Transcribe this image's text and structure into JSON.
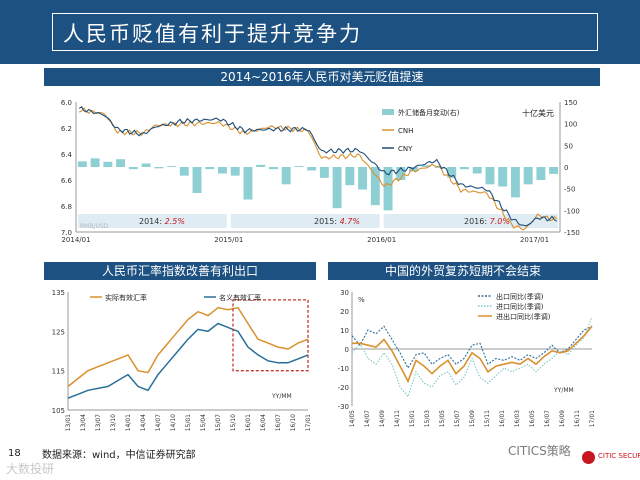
{
  "page": {
    "title": "人民币贬值有利于提升竞争力",
    "page_number": "18",
    "source": "数据来源：wind，中信证券研究部",
    "watermark_left": "大数投研",
    "watermark_right": "CITICS策略",
    "logo_text": "CITIC SECURITIES"
  },
  "colors": {
    "banner": "#1c5182",
    "orange": "#d9902f",
    "blue": "#2a6f97",
    "teal_bar": "#8ecfd3",
    "red": "#c8161e",
    "darkred": "#c0392b"
  },
  "chart_data": [
    {
      "id": "top",
      "type": "bar+line",
      "title": "2014~2016年人民币对美元贬值提速",
      "unit_left": "RMB/USD",
      "unit_right": "十亿美元",
      "y_left": [
        6.0,
        7.0
      ],
      "y_left_ticks": [
        "6.0",
        "6.2",
        "6.4",
        "6.6",
        "6.8",
        "7.0"
      ],
      "y_right": [
        -150,
        150
      ],
      "y_right_ticks": [
        "150",
        "100",
        "50",
        "0",
        "-50",
        "-100",
        "-150"
      ],
      "x_ticks": [
        "2014/01",
        "2015/01",
        "2016/01",
        "2017/01"
      ],
      "legend": [
        "外汇储备月变动(右)",
        "CNH",
        "CNY"
      ],
      "annotations": [
        {
          "prefix": "2014: ",
          "value": "2.5%"
        },
        {
          "prefix": "2015: ",
          "value": "4.7%"
        },
        {
          "prefix": "2016: ",
          "value": "7.0%"
        }
      ],
      "reserve_change": [
        13,
        20,
        12,
        18,
        -5,
        8,
        -3,
        2,
        -20,
        -60,
        -5,
        -15,
        -20,
        -75,
        5,
        -5,
        -40,
        2,
        -8,
        -25,
        -95,
        -42,
        -52,
        -88,
        -100,
        -30,
        -10,
        4,
        -2,
        -25,
        -5,
        -15,
        -40,
        -45,
        -70,
        -40,
        -30,
        -16
      ],
      "cny_anchor_months": [
        0,
        2,
        3,
        5,
        6,
        8,
        11,
        13,
        15,
        18,
        19,
        22,
        24,
        26,
        28,
        30,
        32,
        34,
        35,
        36,
        37
      ],
      "cny_anchor_values": [
        6.05,
        6.1,
        6.21,
        6.25,
        6.19,
        6.15,
        6.13,
        6.22,
        6.21,
        6.21,
        6.38,
        6.37,
        6.55,
        6.51,
        6.45,
        6.64,
        6.67,
        6.9,
        6.96,
        6.89,
        6.9
      ],
      "cnh_anchor_months": [
        0,
        2,
        3,
        5,
        6,
        8,
        11,
        13,
        15,
        18,
        19,
        22,
        24,
        26,
        28,
        30,
        32,
        34,
        35,
        36,
        37
      ],
      "cnh_anchor_values": [
        6.06,
        6.09,
        6.23,
        6.24,
        6.18,
        6.17,
        6.16,
        6.24,
        6.19,
        6.22,
        6.43,
        6.41,
        6.65,
        6.54,
        6.48,
        6.68,
        6.7,
        6.95,
        6.98,
        6.87,
        6.9
      ]
    },
    {
      "id": "bottom-left",
      "type": "line",
      "title": "人民币汇率指数改善有利出口",
      "y_range": [
        105,
        135
      ],
      "y_ticks": [
        "135",
        "125",
        "115",
        "105"
      ],
      "x_ticks": [
        "13/01",
        "13/04",
        "13/07",
        "13/10",
        "14/01",
        "14/04",
        "14/07",
        "14/10",
        "15/01",
        "15/04",
        "15/07",
        "15/10",
        "16/01",
        "16/04",
        "16/07",
        "16/10",
        "17/01"
      ],
      "legend": [
        "实际有效汇率",
        "名义有效汇率"
      ],
      "unit": "YY/MM",
      "series": [
        {
          "name": "实际有效汇率",
          "anchor_idx": [
            0,
            4,
            8,
            12,
            14,
            16,
            18,
            20,
            22,
            24,
            26,
            28,
            30,
            32,
            34,
            36,
            38,
            40,
            42,
            44,
            46,
            48
          ],
          "anchor_values": [
            111,
            115,
            117,
            119,
            115,
            114.5,
            119,
            122,
            125,
            128,
            130,
            129,
            131,
            130.5,
            131,
            127,
            123,
            122,
            121,
            120.5,
            122,
            123
          ]
        },
        {
          "name": "名义有效汇率",
          "anchor_idx": [
            0,
            4,
            8,
            12,
            14,
            16,
            18,
            20,
            22,
            24,
            26,
            28,
            30,
            32,
            34,
            36,
            38,
            40,
            42,
            44,
            46,
            48
          ],
          "anchor_values": [
            108,
            110,
            111,
            114,
            111,
            110,
            114,
            117,
            120,
            123,
            125.5,
            125,
            127,
            126,
            125,
            121,
            119,
            117.5,
            117,
            117,
            118,
            119
          ]
        }
      ],
      "highlight_from_idx": 33,
      "highlight_to_idx": 48,
      "highlight_range": [
        115,
        133
      ]
    },
    {
      "id": "bottom-right",
      "type": "line",
      "title": "中国的外贸复苏短期不会结束",
      "y_range": [
        -30,
        30
      ],
      "y_ticks": [
        "30",
        "20",
        "10",
        "0",
        "-10",
        "-20",
        "-30"
      ],
      "unit_left": "%",
      "unit": "YY/MM",
      "x_ticks": [
        "14/05",
        "14/07",
        "14/09",
        "14/11",
        "15/01",
        "15/03",
        "15/05",
        "15/07",
        "15/09",
        "15/11",
        "16/01",
        "16/03",
        "16/05",
        "16/07",
        "16/09",
        "16/11",
        "17/01"
      ],
      "legend": [
        "出口同比(季调)",
        "进口同比(季调)",
        "进出口同比(季调)"
      ],
      "series": [
        {
          "name": "出口同比(季调)",
          "values": [
            7,
            2,
            10,
            8,
            12,
            5,
            -2,
            -10,
            -3,
            -2,
            -8,
            -5,
            -3,
            -8,
            -5,
            2,
            3,
            -8,
            -5,
            -6,
            -4,
            -6,
            -3,
            -5,
            -2,
            2,
            -2,
            0,
            5,
            10,
            12
          ]
        },
        {
          "name": "进口同比(季调)",
          "values": [
            -2,
            3,
            -5,
            -8,
            -2,
            -8,
            -20,
            -25,
            -12,
            -18,
            -20,
            -14,
            -12,
            -19,
            -15,
            -5,
            -15,
            -18,
            -14,
            -10,
            -12,
            -10,
            -8,
            -12,
            -8,
            -5,
            -1,
            -3,
            2,
            6,
            17
          ]
        },
        {
          "name": "进出口同比(季调)",
          "values": [
            3,
            3,
            2,
            1,
            5,
            -1,
            -9,
            -17,
            -6,
            -9,
            -13,
            -9,
            -6,
            -13,
            -9,
            -2,
            -5,
            -12,
            -9,
            -8,
            -7,
            -8,
            -5,
            -8,
            -4,
            -1,
            -2,
            -1,
            3,
            7,
            12
          ]
        }
      ]
    }
  ]
}
